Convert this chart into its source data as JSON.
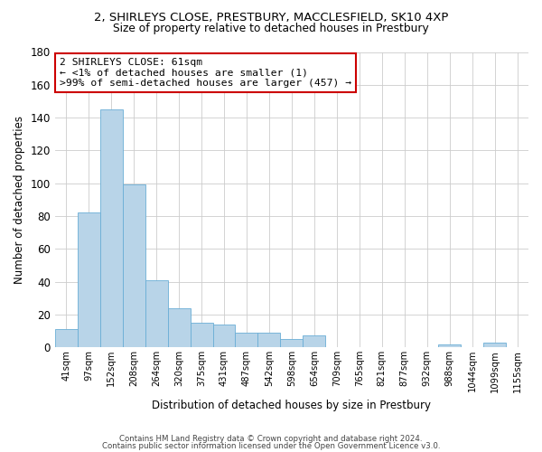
{
  "title": "2, SHIRLEYS CLOSE, PRESTBURY, MACCLESFIELD, SK10 4XP",
  "subtitle": "Size of property relative to detached houses in Prestbury",
  "xlabel": "Distribution of detached houses by size in Prestbury",
  "ylabel": "Number of detached properties",
  "bar_labels": [
    "41sqm",
    "97sqm",
    "152sqm",
    "208sqm",
    "264sqm",
    "320sqm",
    "375sqm",
    "431sqm",
    "487sqm",
    "542sqm",
    "598sqm",
    "654sqm",
    "709sqm",
    "765sqm",
    "821sqm",
    "877sqm",
    "932sqm",
    "988sqm",
    "1044sqm",
    "1099sqm",
    "1155sqm"
  ],
  "bar_values": [
    11,
    82,
    145,
    99,
    41,
    24,
    15,
    14,
    9,
    9,
    5,
    7,
    0,
    0,
    0,
    0,
    0,
    2,
    0,
    3,
    0
  ],
  "bar_color_normal": "#b8d4e8",
  "bar_color_highlight": "#b8d4e8",
  "bar_edge_color": "#6aaed6",
  "highlight_index": 0,
  "ylim": [
    0,
    180
  ],
  "yticks": [
    0,
    20,
    40,
    60,
    80,
    100,
    120,
    140,
    160,
    180
  ],
  "annotation_title": "2 SHIRLEYS CLOSE: 61sqm",
  "annotation_line1": "← <1% of detached houses are smaller (1)",
  "annotation_line2": ">99% of semi-detached houses are larger (457) →",
  "annotation_box_color": "#ffffff",
  "annotation_box_edge": "#cc0000",
  "footer_line1": "Contains HM Land Registry data © Crown copyright and database right 2024.",
  "footer_line2": "Contains public sector information licensed under the Open Government Licence v3.0."
}
